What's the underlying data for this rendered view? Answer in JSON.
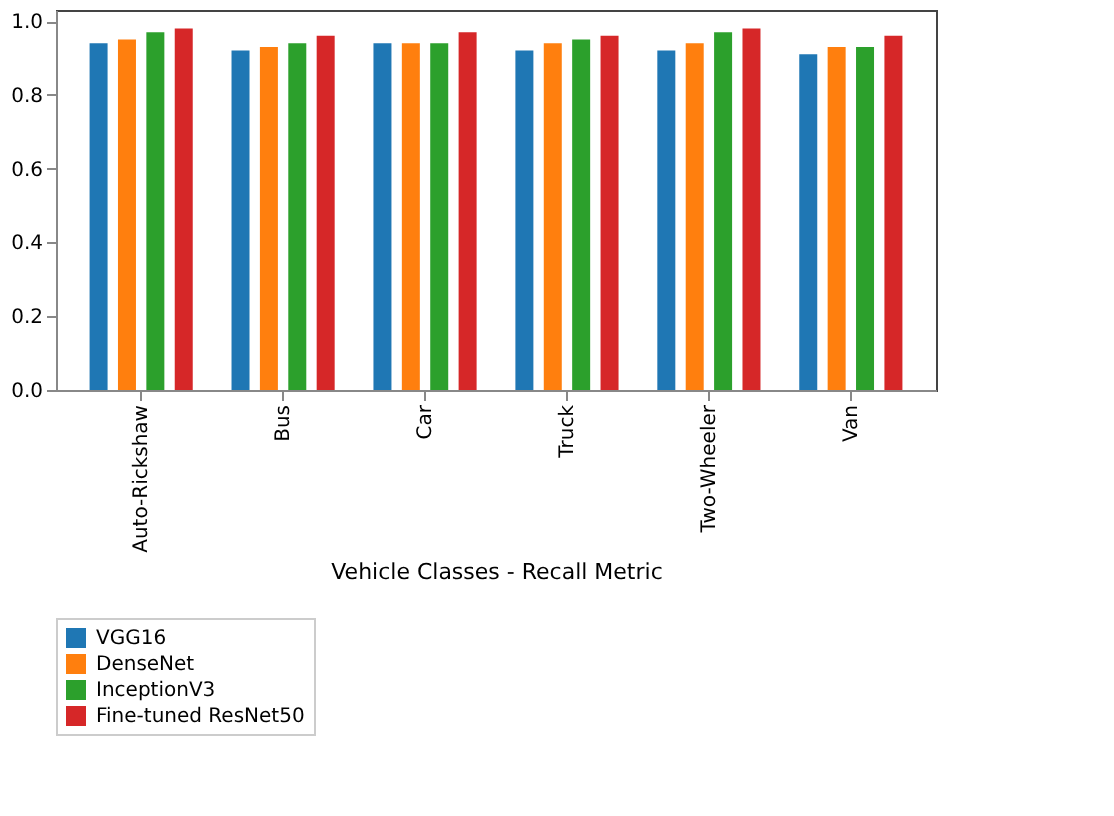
{
  "chart_data": {
    "type": "bar",
    "xlabel": "Vehicle Classes - Recall Metric",
    "categories": [
      "Auto-Rickshaw",
      "Bus",
      "Car",
      "Truck",
      "Two-Wheeler",
      "Van"
    ],
    "series": [
      {
        "name": "VGG16",
        "color": "#1f77b4",
        "values": [
          0.94,
          0.92,
          0.94,
          0.92,
          0.92,
          0.91
        ]
      },
      {
        "name": "DenseNet",
        "color": "#ff7f0e",
        "values": [
          0.95,
          0.93,
          0.94,
          0.94,
          0.94,
          0.93
        ]
      },
      {
        "name": "InceptionV3",
        "color": "#2ca02c",
        "values": [
          0.97,
          0.94,
          0.94,
          0.95,
          0.97,
          0.93
        ]
      },
      {
        "name": "Fine-tuned ResNet50",
        "color": "#d62728",
        "values": [
          0.98,
          0.96,
          0.97,
          0.96,
          0.98,
          0.96
        ]
      }
    ],
    "ylim": [
      0,
      1.03
    ],
    "yticks": [
      {
        "value": 0,
        "label": "0.0"
      },
      {
        "value": 0.2,
        "label": "0.2"
      },
      {
        "value": 0.4,
        "label": "0.4"
      },
      {
        "value": 0.6,
        "label": "0.6"
      },
      {
        "value": 0.8,
        "label": "0.8"
      },
      {
        "value": 1,
        "label": "1.0"
      }
    ],
    "legend": "bottom",
    "grid": false
  }
}
